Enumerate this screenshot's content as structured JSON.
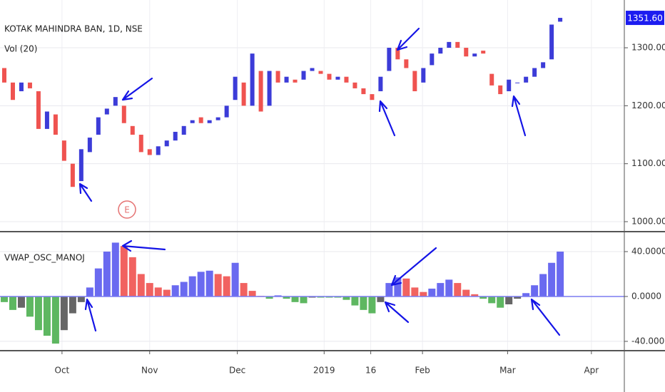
{
  "chart_data": [
    {
      "type": "candlestick",
      "title": "KOTAK MAHINDRA BAN, 1D, NSE",
      "subtitle": "Vol (20)",
      "x": [
        1,
        3,
        5,
        7,
        9,
        11,
        13,
        15,
        17,
        19,
        21,
        23,
        25,
        27,
        29,
        31,
        33,
        35,
        37,
        39,
        41,
        43,
        45,
        47,
        49,
        51,
        53,
        55,
        57,
        59,
        61,
        63,
        65,
        67,
        69,
        71,
        73,
        75,
        77,
        79,
        81,
        83,
        85,
        87,
        89,
        91,
        93,
        95,
        97,
        99,
        101,
        103,
        105,
        107,
        109,
        111,
        113,
        115,
        117,
        119,
        121,
        123,
        125,
        127,
        129,
        131
      ],
      "open": [
        1265,
        1240,
        1225,
        1240,
        1225,
        1160,
        1185,
        1140,
        1100,
        1070,
        1120,
        1150,
        1185,
        1200,
        1200,
        1165,
        1150,
        1125,
        1115,
        1130,
        1140,
        1150,
        1170,
        1180,
        1170,
        1175,
        1180,
        1210,
        1240,
        1200,
        1260,
        1200,
        1260,
        1240,
        1245,
        1245,
        1260,
        1260,
        1255,
        1245,
        1250,
        1240,
        1230,
        1220,
        1225,
        1260,
        1300,
        1280,
        1260,
        1240,
        1270,
        1290,
        1300,
        1310,
        1300,
        1285,
        1295,
        1255,
        1235,
        1225,
        1240,
        1240,
        1250,
        1265,
        1280,
        1345
      ],
      "close": [
        1240,
        1210,
        1240,
        1230,
        1160,
        1190,
        1150,
        1105,
        1060,
        1125,
        1145,
        1180,
        1195,
        1215,
        1170,
        1150,
        1120,
        1115,
        1130,
        1140,
        1155,
        1165,
        1175,
        1170,
        1175,
        1180,
        1200,
        1250,
        1200,
        1290,
        1190,
        1260,
        1240,
        1250,
        1240,
        1260,
        1265,
        1255,
        1245,
        1250,
        1240,
        1230,
        1220,
        1210,
        1250,
        1300,
        1280,
        1265,
        1225,
        1265,
        1290,
        1300,
        1310,
        1300,
        1285,
        1290,
        1290,
        1235,
        1220,
        1245,
        1240,
        1250,
        1265,
        1275,
        1340,
        1351.6
      ],
      "price_label": "1351.60",
      "up_color": "#3c3cd8",
      "down_color": "#ef5350",
      "xlim": [
        0,
        146
      ],
      "xticks": [
        {
          "value": 14.5,
          "label": "Oct"
        },
        {
          "value": 35,
          "label": "Nov"
        },
        {
          "value": 55.5,
          "label": "Dec"
        },
        {
          "value": 75.8,
          "label": "2019"
        },
        {
          "value": 86.7,
          "label": "16"
        },
        {
          "value": 98.8,
          "label": "Feb"
        },
        {
          "value": 118.7,
          "label": "Mar"
        },
        {
          "value": 138.3,
          "label": "Apr"
        }
      ],
      "ylim": [
        982.8,
        1382.4
      ],
      "yticks": [
        {
          "value": 1000,
          "label": "1000.00"
        },
        {
          "value": 1100,
          "label": "1100.00"
        },
        {
          "value": 1200,
          "label": "1200.00"
        },
        {
          "value": 1300,
          "label": "1300.00"
        }
      ],
      "grid": true,
      "marker": "E"
    },
    {
      "type": "bar",
      "title": "VWAP_OSC_MANOJ",
      "values": [
        -5,
        -12,
        -10,
        -18,
        -30,
        -35,
        -42,
        -30,
        -15,
        -5,
        8,
        25,
        40,
        48,
        45,
        35,
        20,
        12,
        8,
        6,
        10,
        13,
        18,
        22,
        23,
        20,
        18,
        30,
        12,
        5,
        0.5,
        -2,
        1,
        -2,
        -5,
        -6,
        -1,
        -1,
        -1,
        -1,
        -3,
        -8,
        -12,
        -15,
        -5,
        12,
        17,
        16,
        8,
        4,
        7,
        12,
        15,
        12,
        6,
        2,
        -2,
        -6,
        -10,
        -7,
        -2,
        3,
        10,
        20,
        30,
        40
      ],
      "colors": {
        "rise_up": "#5a5aee",
        "fall_up": "#f0514f",
        "fall_down": "#4caf50",
        "rise_down": "#555555"
      },
      "xlim": [
        0,
        146
      ],
      "ylim": [
        -48.3,
        57.8
      ],
      "yticks": [
        {
          "value": 40,
          "label": "40.0000"
        },
        {
          "value": 0,
          "label": "0.0000"
        },
        {
          "value": -40,
          "label": "-40.0000"
        }
      ],
      "grid": true
    }
  ]
}
